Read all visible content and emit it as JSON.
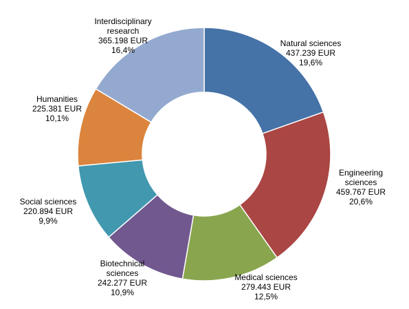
{
  "chart_data": {
    "type": "pie",
    "donut": true,
    "slices": [
      {
        "name": "Natural sciences",
        "name_lines": [
          "Natural  sciences"
        ],
        "value": 437239,
        "value_label": "437.239 EUR",
        "percent": 19.6,
        "percent_label": "19,6%",
        "color": "#4572A7"
      },
      {
        "name": "Engineering sciences",
        "name_lines": [
          "Engineering",
          "sciences"
        ],
        "value": 459767,
        "value_label": "459.767 EUR",
        "percent": 20.6,
        "percent_label": "20,6%",
        "color": "#AA4643"
      },
      {
        "name": "Medical sciences",
        "name_lines": [
          "Medical sciences"
        ],
        "value": 279443,
        "value_label": "279.443 EUR",
        "percent": 12.5,
        "percent_label": "12,5%",
        "color": "#89A54E"
      },
      {
        "name": "Biotechnical sciences",
        "name_lines": [
          "Biotechnical",
          "sciences"
        ],
        "value": 242277,
        "value_label": "242.277 EUR",
        "percent": 10.9,
        "percent_label": "10,9%",
        "color": "#71588F"
      },
      {
        "name": "Social sciences",
        "name_lines": [
          "Social sciences"
        ],
        "value": 220894,
        "value_label": "220.894 EUR",
        "percent": 9.9,
        "percent_label": "9,9%",
        "color": "#4198AF"
      },
      {
        "name": "Humanities",
        "name_lines": [
          "Humanities"
        ],
        "value": 225381,
        "value_label": "225.381 EUR",
        "percent": 10.1,
        "percent_label": "10,1%",
        "color": "#DB843D"
      },
      {
        "name": "Interdisciplinary research",
        "name_lines": [
          "Interdisciplinary",
          "research"
        ],
        "value": 365198,
        "value_label": "365.198 EUR",
        "percent": 16.4,
        "percent_label": "16,4%",
        "color": "#93A9CF"
      }
    ],
    "legend": "none"
  }
}
